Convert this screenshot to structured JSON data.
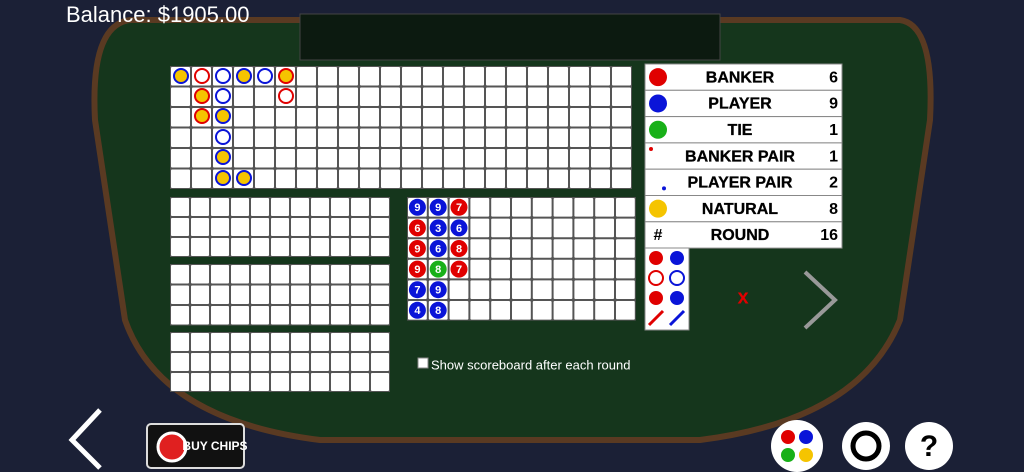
{
  "balance": "Balance: $1905.00",
  "stats": [
    {
      "label": "BANKER",
      "count": 6,
      "icon": "#e00000"
    },
    {
      "label": "PLAYER",
      "count": 9,
      "icon": "#0a14d8"
    },
    {
      "label": "TIE",
      "count": 1,
      "icon": "#18b018"
    },
    {
      "label": "BANKER PAIR",
      "count": 1,
      "icon": "#e00000"
    },
    {
      "label": "PLAYER PAIR",
      "count": 2,
      "icon": "#0a14d8"
    },
    {
      "label": "NATURAL",
      "count": 8,
      "icon": "#f5c400"
    },
    {
      "label": "ROUND",
      "count": 16,
      "icon_text": "#"
    }
  ],
  "bead_road": [
    [
      {
        "value": 9,
        "color": "#0a14d8"
      },
      {
        "value": 6,
        "color": "#e00000"
      },
      {
        "value": 9,
        "color": "#e00000"
      },
      {
        "value": 9,
        "color": "#e00000"
      },
      {
        "value": 7,
        "color": "#0a14d8"
      },
      {
        "value": 4,
        "color": "#0a14d8"
      }
    ],
    [
      {
        "value": 9,
        "color": "#0a14d8"
      },
      {
        "value": 3,
        "color": "#0a14d8"
      },
      {
        "value": 6,
        "color": "#0a14d8"
      },
      {
        "value": 8,
        "color": "#18b018"
      },
      {
        "value": 9,
        "color": "#0a14d8"
      },
      {
        "value": 8,
        "color": "#0a14d8"
      }
    ],
    [
      {
        "value": 7,
        "color": "#e00000"
      },
      {
        "value": 6,
        "color": "#0a14d8"
      },
      {
        "value": 8,
        "color": "#e00000"
      },
      {
        "value": 7,
        "color": "#e00000"
      }
    ]
  ],
  "checkbox_label": "Show scoreboard after each round",
  "buy_chips": "BUY CHIPS"
}
